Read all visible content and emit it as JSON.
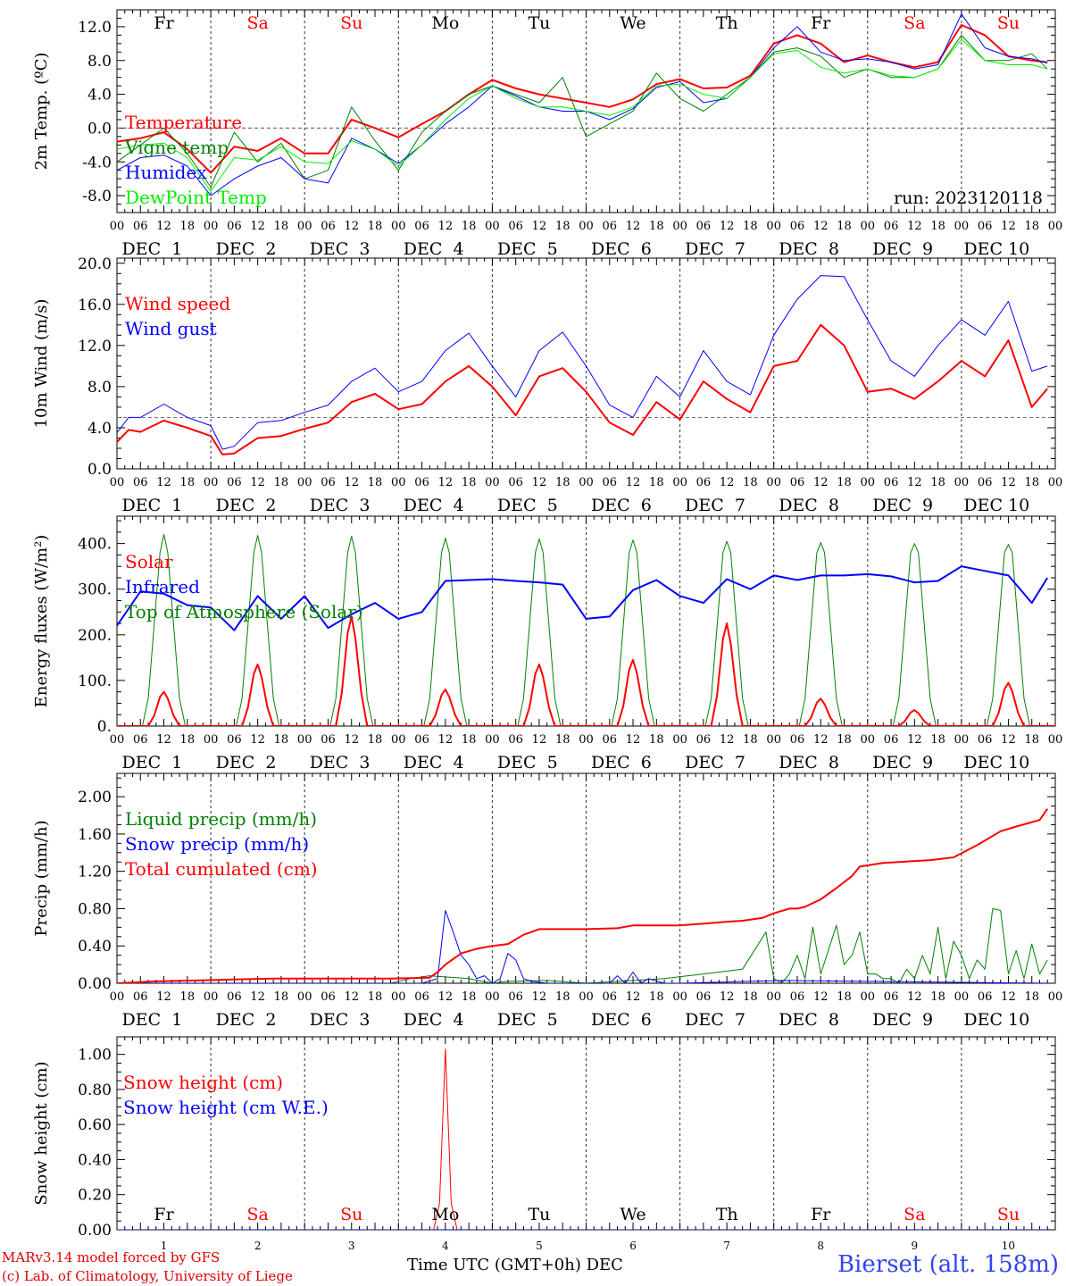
{
  "footer": {
    "credit_line1": "MARv3.14 model forced by GFS",
    "credit_line2": "(c) Lab. of Climatology, University of Liege",
    "xlabel": "Time UTC (GMT+0h)",
    "xlabel_month": "DEC",
    "station": "Bierset (alt. 158m)"
  },
  "days": {
    "weekdays": [
      "Fr",
      "Sa",
      "Su",
      "Mo",
      "Tu",
      "We",
      "Th",
      "Fr",
      "Sa",
      "Su"
    ],
    "weekend_flags": [
      false,
      true,
      true,
      false,
      false,
      false,
      false,
      false,
      true,
      true
    ],
    "dates": [
      "DEC  1",
      "DEC  2",
      "DEC  3",
      "DEC  4",
      "DEC  5",
      "DEC  6",
      "DEC  7",
      "DEC  8",
      "DEC  9",
      "DEC 10"
    ],
    "day_numbers": [
      "1",
      "2",
      "3",
      "4",
      "5",
      "6",
      "7",
      "8",
      "9",
      "10"
    ],
    "hour_ticks": [
      "00",
      "06",
      "12",
      "18"
    ],
    "final_tick": "00"
  },
  "colors": {
    "red": "#ff0000",
    "dark_green": "#008000",
    "blue": "#0000ff",
    "light_green": "#00ee00",
    "axis": "#000000",
    "station_blue": "#3344ee",
    "credit_red": "#dd0000"
  },
  "chart_data": [
    {
      "id": "temp",
      "type": "line",
      "ylabel": "2m Temp. (ºC)",
      "ylim": [
        -10,
        14
      ],
      "yticks": [
        -8,
        -4,
        0,
        4,
        8,
        12
      ],
      "ytick_labels": [
        "-8.0",
        "-4.0",
        "0.0",
        "4.0",
        "8.0",
        "12.0"
      ],
      "zero_line": 0,
      "annotation": "run: 2023120118",
      "series": [
        {
          "name": "Temperature",
          "color": "red",
          "width": 2,
          "x": [
            0,
            6,
            12,
            18,
            24,
            30,
            36,
            42,
            48,
            54,
            60,
            66,
            72,
            78,
            84,
            90,
            96,
            102,
            108,
            114,
            120,
            126,
            132,
            138,
            144,
            150,
            156,
            162,
            168,
            174,
            180,
            186,
            192,
            198,
            204,
            210,
            216,
            222,
            228,
            234,
            238
          ],
          "values": [
            -1.6,
            -1.2,
            -0.5,
            -2.5,
            -5.3,
            -2.2,
            -2.7,
            -1.2,
            -3,
            -3,
            1,
            0,
            -1.1,
            0.5,
            2,
            4,
            5.7,
            4.7,
            4,
            3.5,
            3,
            2.5,
            3.4,
            5.2,
            5.8,
            4.7,
            4.8,
            6.2,
            10,
            11,
            10,
            7.8,
            8.6,
            7.8,
            7.2,
            7.8,
            12.2,
            11,
            8.5,
            8,
            7.8
          ]
        },
        {
          "name": "Vigne temp",
          "color": "dark_green",
          "width": 1,
          "x": [
            0,
            6,
            12,
            18,
            24,
            30,
            36,
            42,
            48,
            54,
            60,
            66,
            72,
            78,
            84,
            90,
            96,
            102,
            108,
            114,
            120,
            126,
            132,
            138,
            144,
            150,
            156,
            162,
            168,
            174,
            180,
            186,
            192,
            198,
            204,
            210,
            216,
            222,
            228,
            234,
            238
          ],
          "values": [
            -4,
            -2,
            0,
            -3,
            -7,
            -0.5,
            -4,
            -1.8,
            -6,
            -5,
            2.5,
            -1.5,
            -5,
            -0.5,
            2,
            4,
            5,
            4,
            3,
            6,
            -1,
            0.5,
            2,
            6.5,
            3.5,
            2,
            4,
            6,
            9,
            9.5,
            8.5,
            6,
            7,
            6,
            6,
            7,
            11,
            8,
            8,
            8.8,
            7
          ]
        },
        {
          "name": "Humidex",
          "color": "blue",
          "width": 1,
          "x": [
            0,
            6,
            12,
            18,
            24,
            30,
            36,
            42,
            48,
            54,
            60,
            66,
            72,
            78,
            84,
            90,
            96,
            102,
            108,
            114,
            120,
            126,
            132,
            138,
            144,
            150,
            156,
            162,
            168,
            174,
            180,
            186,
            192,
            198,
            204,
            210,
            216,
            222,
            228,
            234,
            238
          ],
          "values": [
            -5,
            -3.5,
            -3.2,
            -4.5,
            -8,
            -6,
            -4.5,
            -3.5,
            -6,
            -6.5,
            -1.2,
            -2.5,
            -4.2,
            -2,
            0.5,
            2.5,
            5,
            3.8,
            2.5,
            2,
            2,
            1,
            2.3,
            4.8,
            5.5,
            3,
            3.5,
            6,
            9.5,
            12,
            9,
            8,
            8.2,
            7.8,
            7,
            7.5,
            13.5,
            9.5,
            8.5,
            8.2,
            7.7
          ]
        },
        {
          "name": "DewPoint Temp",
          "color": "light_green",
          "width": 1,
          "x": [
            0,
            6,
            12,
            18,
            24,
            30,
            36,
            42,
            48,
            54,
            60,
            66,
            72,
            78,
            84,
            90,
            96,
            102,
            108,
            114,
            120,
            126,
            132,
            138,
            144,
            150,
            156,
            162,
            168,
            174,
            180,
            186,
            192,
            198,
            204,
            210,
            216,
            222,
            228,
            234,
            238
          ],
          "values": [
            -2.5,
            -2,
            -1.8,
            -3.5,
            -7.5,
            -3.5,
            -3.8,
            -2.2,
            -4,
            -4.2,
            -1.5,
            -2.5,
            -4.5,
            -2,
            1,
            3.5,
            5,
            3.5,
            2.5,
            2.5,
            2,
            1.5,
            2.5,
            5,
            5.2,
            4,
            3.5,
            6,
            8.8,
            9.2,
            7.2,
            6.5,
            7,
            6.2,
            6,
            7,
            10.5,
            8,
            7.5,
            7.5,
            7
          ]
        }
      ]
    },
    {
      "id": "wind",
      "type": "line",
      "ylabel": "10m Wind (m/s)",
      "ylim": [
        0,
        20.5
      ],
      "yticks": [
        0,
        4,
        8,
        12,
        16,
        20
      ],
      "ytick_labels": [
        "0.0",
        "4.0",
        "8.0",
        "12.0",
        "16.0",
        "20.0"
      ],
      "ref_line": 5,
      "series": [
        {
          "name": "Wind speed",
          "color": "red",
          "width": 2,
          "x": [
            0,
            3,
            6,
            12,
            18,
            24,
            27,
            30,
            36,
            42,
            48,
            54,
            60,
            66,
            72,
            78,
            84,
            90,
            96,
            102,
            108,
            114,
            120,
            126,
            132,
            138,
            144,
            150,
            156,
            162,
            168,
            174,
            180,
            186,
            192,
            198,
            204,
            210,
            216,
            222,
            228,
            234,
            238
          ],
          "values": [
            2.6,
            3.8,
            3.6,
            4.7,
            4,
            3.2,
            1.4,
            1.5,
            3,
            3.2,
            3.9,
            4.5,
            6.5,
            7.3,
            5.8,
            6.3,
            8.5,
            10,
            8,
            5.2,
            9,
            9.8,
            7.5,
            4.5,
            3.3,
            6.5,
            4.8,
            8.5,
            6.8,
            5.5,
            10,
            10.5,
            14,
            12,
            7.5,
            7.8,
            6.8,
            8.5,
            10.5,
            9,
            12.5,
            6,
            7.8
          ]
        },
        {
          "name": "Wind gust",
          "color": "blue",
          "width": 1,
          "x": [
            0,
            3,
            6,
            12,
            18,
            24,
            27,
            30,
            36,
            42,
            48,
            54,
            60,
            66,
            72,
            78,
            84,
            90,
            96,
            102,
            108,
            114,
            120,
            126,
            132,
            138,
            144,
            150,
            156,
            162,
            168,
            174,
            180,
            186,
            192,
            198,
            204,
            210,
            216,
            222,
            228,
            234,
            238
          ],
          "values": [
            3.5,
            5,
            5,
            6.3,
            5,
            4.2,
            1.9,
            2.2,
            4.5,
            4.7,
            5.5,
            6.2,
            8.5,
            9.8,
            7.5,
            8.5,
            11.5,
            13.2,
            10,
            7,
            11.5,
            13.3,
            10,
            6.2,
            5,
            9,
            7,
            11.5,
            8.5,
            7.2,
            13,
            16.5,
            18.8,
            18.7,
            14.5,
            10.5,
            9,
            12,
            14.5,
            13,
            16.3,
            9.5,
            10
          ]
        }
      ]
    },
    {
      "id": "flux",
      "type": "line",
      "ylabel": "Energy fluxes (W/m²)",
      "ylim": [
        0,
        460
      ],
      "yticks": [
        0,
        100,
        200,
        300,
        400
      ],
      "ytick_labels": [
        "0.",
        "100.",
        "200.",
        "300.",
        "400."
      ],
      "toa_peak": 420,
      "toa_peaks_by_day": [
        420,
        418,
        416,
        412,
        410,
        408,
        405,
        402,
        400,
        398
      ],
      "series": [
        {
          "name": "Solar",
          "color": "red",
          "width": 2,
          "peaks_by_day": [
            75,
            135,
            240,
            80,
            135,
            145,
            225,
            60,
            35,
            95
          ]
        },
        {
          "name": "Infrared",
          "color": "blue",
          "width": 2,
          "x": [
            0,
            6,
            12,
            18,
            24,
            30,
            36,
            42,
            48,
            54,
            60,
            66,
            72,
            78,
            84,
            90,
            96,
            102,
            108,
            114,
            120,
            126,
            132,
            138,
            144,
            150,
            156,
            162,
            168,
            174,
            180,
            186,
            192,
            198,
            204,
            210,
            216,
            222,
            228,
            234,
            238
          ],
          "values": [
            220,
            295,
            290,
            265,
            260,
            210,
            285,
            235,
            285,
            215,
            245,
            270,
            235,
            250,
            318,
            320,
            322,
            318,
            315,
            310,
            235,
            240,
            298,
            320,
            285,
            270,
            322,
            300,
            330,
            320,
            330,
            330,
            333,
            328,
            315,
            318,
            350,
            340,
            330,
            270,
            325
          ]
        },
        {
          "name": "Top of Atmosphere (Solar)",
          "color": "dark_green",
          "width": 1
        }
      ]
    },
    {
      "id": "precip",
      "type": "line",
      "ylabel": "Precip (mm/h)",
      "ylim": [
        0,
        2.25
      ],
      "yticks": [
        0,
        0.4,
        0.8,
        1.2,
        1.6,
        2.0
      ],
      "ytick_labels": [
        "0.00",
        "0.40",
        "0.80",
        "1.20",
        "1.60",
        "2.00"
      ],
      "series": [
        {
          "name": "Liquid precip (mm/h)",
          "color": "dark_green",
          "width": 1,
          "x": [
            0,
            70,
            75,
            80,
            90,
            96,
            100,
            110,
            120,
            140,
            150,
            160,
            166,
            168,
            170,
            172,
            174,
            176,
            178,
            180,
            184,
            186,
            188,
            190,
            192,
            194,
            196,
            198,
            200,
            202,
            204,
            206,
            208,
            210,
            212,
            214,
            216,
            218,
            220,
            222,
            224,
            226,
            228,
            230,
            232,
            234,
            236,
            238
          ],
          "values": [
            0,
            0,
            0.05,
            0.08,
            0.05,
            0,
            0.02,
            0.03,
            0,
            0.05,
            0.1,
            0.15,
            0.55,
            0.05,
            0,
            0.1,
            0.3,
            0.05,
            0.6,
            0.1,
            0.62,
            0.2,
            0.3,
            0.55,
            0.1,
            0.1,
            0.05,
            0.05,
            0,
            0.15,
            0.05,
            0.3,
            0.1,
            0.6,
            0.05,
            0.45,
            0.3,
            0.05,
            0.25,
            0.15,
            0.8,
            0.78,
            0.1,
            0.35,
            0.05,
            0.42,
            0.1,
            0.25
          ]
        },
        {
          "name": "Snow precip (mm/h)",
          "color": "blue",
          "width": 1,
          "x": [
            0,
            72,
            78,
            82,
            84,
            86,
            88,
            90,
            92,
            94,
            96,
            98,
            100,
            102,
            104,
            106,
            110,
            120,
            126,
            128,
            130,
            132,
            134,
            136,
            140,
            144,
            170,
            238
          ],
          "values": [
            0,
            0,
            0,
            0.05,
            0.78,
            0.55,
            0.3,
            0.2,
            0.05,
            0.08,
            0,
            0.05,
            0.32,
            0.25,
            0.05,
            0.02,
            0,
            0,
            0,
            0.08,
            0,
            0.12,
            0,
            0.05,
            0,
            0,
            0.03,
            0
          ]
        },
        {
          "name": "Total cumulated (cm)",
          "color": "red",
          "width": 2,
          "x": [
            0,
            10,
            20,
            30,
            40,
            50,
            60,
            70,
            80,
            82,
            84,
            88,
            92,
            96,
            100,
            104,
            108,
            112,
            120,
            128,
            132,
            136,
            144,
            150,
            156,
            160,
            165,
            168,
            172,
            174,
            176,
            180,
            184,
            188,
            190,
            196,
            200,
            208,
            210,
            214,
            220,
            226,
            230,
            236,
            238
          ],
          "values": [
            0,
            0.02,
            0.03,
            0.04,
            0.05,
            0.05,
            0.05,
            0.05,
            0.06,
            0.12,
            0.2,
            0.32,
            0.37,
            0.4,
            0.42,
            0.52,
            0.58,
            0.58,
            0.58,
            0.59,
            0.62,
            0.62,
            0.62,
            0.64,
            0.66,
            0.67,
            0.7,
            0.75,
            0.8,
            0.8,
            0.82,
            0.9,
            1.02,
            1.15,
            1.25,
            1.29,
            1.3,
            1.32,
            1.33,
            1.35,
            1.48,
            1.63,
            1.68,
            1.75,
            1.87
          ]
        }
      ]
    },
    {
      "id": "snow",
      "type": "line",
      "ylabel": "Snow height (cm)",
      "ylim": [
        0,
        1.1
      ],
      "yticks": [
        0,
        0.2,
        0.4,
        0.6,
        0.8,
        1.0
      ],
      "ytick_labels": [
        "0.00",
        "0.20",
        "0.40",
        "0.60",
        "0.80",
        "1.00"
      ],
      "series": [
        {
          "name": "Snow height (cm)",
          "color": "red",
          "width": 1,
          "x": [
            0,
            81,
            82.5,
            84,
            85.5,
            87,
            238
          ],
          "values": [
            0,
            0,
            0.15,
            1.03,
            0.15,
            0,
            0
          ]
        },
        {
          "name": "Snow height (cm W.E.)",
          "color": "blue",
          "width": 1,
          "x": [
            0,
            238
          ],
          "values": [
            0,
            0
          ]
        }
      ]
    }
  ]
}
